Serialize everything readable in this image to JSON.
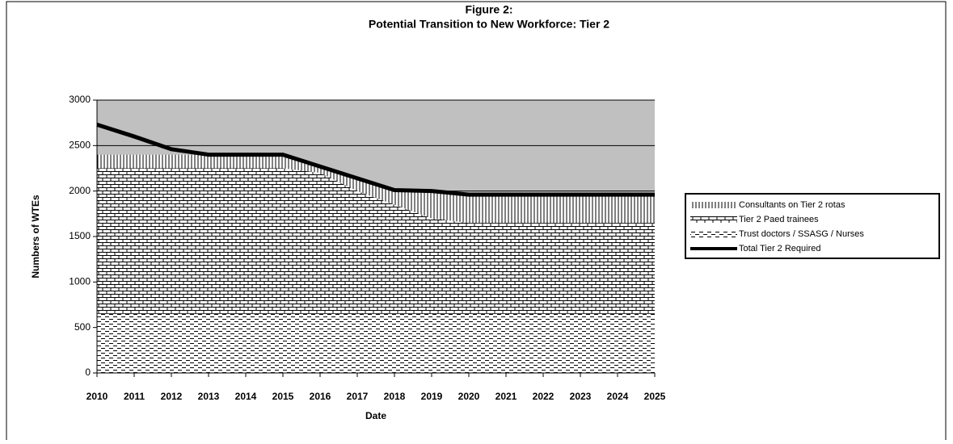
{
  "chart_data": {
    "type": "area",
    "stacked": true,
    "title": "Figure 2:",
    "subtitle": "Potential Transition to New Workforce: Tier 2",
    "x_label": "Date",
    "y_label": "Numbers of WTEs",
    "x": [
      2010,
      2011,
      2012,
      2013,
      2014,
      2015,
      2016,
      2017,
      2018,
      2019,
      2020,
      2021,
      2022,
      2023,
      2024,
      2025
    ],
    "xlim": [
      2010,
      2025
    ],
    "xticks": [
      2010,
      2011,
      2012,
      2013,
      2014,
      2015,
      2016,
      2017,
      2018,
      2019,
      2020,
      2021,
      2022,
      2023,
      2024,
      2025
    ],
    "ylim": [
      0,
      3000
    ],
    "yticks": [
      0,
      500,
      1000,
      1500,
      2000,
      2500,
      3000
    ],
    "grid": true,
    "plot_background": "#c0c0c0",
    "legend": "right",
    "series": [
      {
        "name": "Consultants on Tier 2 rotas",
        "color": "#000000",
        "pattern": "vertical",
        "values": [
          150,
          150,
          150,
          150,
          150,
          150,
          70,
          140,
          160,
          300,
          310,
          310,
          310,
          310,
          310,
          310
        ]
      },
      {
        "name": "Tier 2 Paed trainees",
        "color": "#000000",
        "pattern": "brick",
        "values": [
          1600,
          1600,
          1600,
          1600,
          1600,
          1600,
          1550,
          1350,
          1200,
          1050,
          1000,
          1000,
          1000,
          1000,
          1000,
          1000
        ]
      },
      {
        "name": "Trust doctors / SSASG / Nurses",
        "color": "#000000",
        "pattern": "dashed",
        "values": [
          650,
          650,
          650,
          650,
          650,
          650,
          650,
          650,
          650,
          650,
          650,
          650,
          650,
          650,
          650,
          650
        ]
      },
      {
        "name": "Total Tier 2 Required",
        "color": "#000000",
        "type": "line",
        "values": [
          2730,
          2600,
          2460,
          2400,
          2400,
          2400,
          2270,
          2140,
          2010,
          2000,
          1960,
          1960,
          1960,
          1960,
          1960,
          1960
        ]
      }
    ]
  }
}
